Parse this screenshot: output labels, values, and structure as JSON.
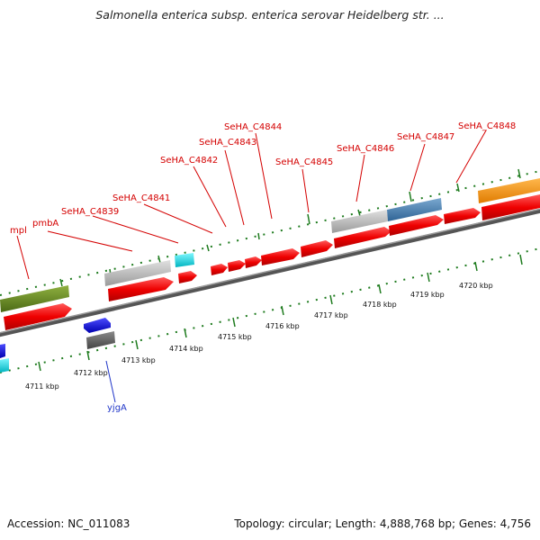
{
  "title": "Salmonella enterica subsp. enterica serovar Heidelberg str. ...",
  "footer": {
    "accession": "Accession: NC_011083",
    "summary": "Topology: circular; Length: 4,888,768 bp; Genes: 4,756"
  },
  "scale_labels": [
    "4711 kbp",
    "4712 kbp",
    "4713 kbp",
    "4714 kbp",
    "4715 kbp",
    "4716 kbp",
    "4717 kbp",
    "4718 kbp",
    "4719 kbp",
    "4720 kbp"
  ],
  "gene_labels": {
    "mpl": "mpl",
    "pmbA": "pmbA",
    "SeHA_C4839": "SeHA_C4839",
    "SeHA_C4841": "SeHA_C4841",
    "SeHA_C4842": "SeHA_C4842",
    "SeHA_C4843": "SeHA_C4843",
    "SeHA_C4844": "SeHA_C4844",
    "SeHA_C4845": "SeHA_C4845",
    "SeHA_C4846": "SeHA_C4846",
    "SeHA_C4847": "SeHA_C4847",
    "SeHA_C4848": "SeHA_C4848",
    "yjgA": "yjgA"
  },
  "colors": {
    "cds": "#e60000",
    "rrna_gray": "#c0c0c0",
    "olive": "#6b8e23",
    "steelblue": "#4682b4",
    "orange": "#ff9900",
    "cyan": "#00e5ee",
    "blue": "#0000ee",
    "darkgray": "#666666",
    "tick": "#1e7b1e"
  }
}
